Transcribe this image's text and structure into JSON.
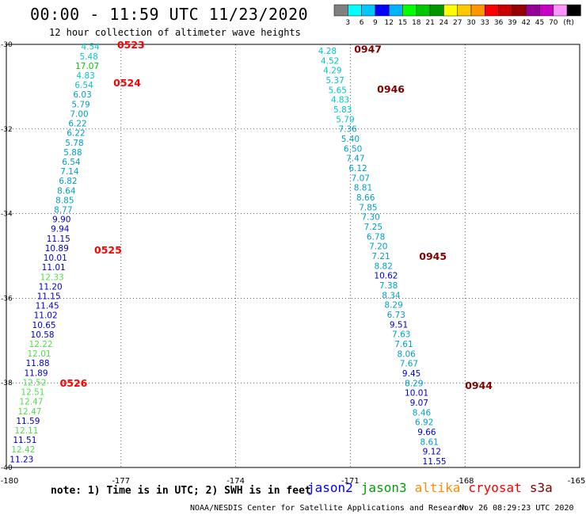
{
  "title": "00:00 - 11:59 UTC 11/23/2020",
  "subtitle": "12 hour collection of altimeter wave heights",
  "legend": {
    "boxes": [
      {
        "color": "#808080"
      },
      {
        "color": "#00ffff"
      },
      {
        "color": "#00c8ff"
      },
      {
        "color": "#0000ff"
      },
      {
        "color": "#00b4ff"
      },
      {
        "color": "#00ff00"
      },
      {
        "color": "#00c800"
      },
      {
        "color": "#009600"
      },
      {
        "color": "#ffff00"
      },
      {
        "color": "#ffc800"
      },
      {
        "color": "#ff9600"
      },
      {
        "color": "#ff0000"
      },
      {
        "color": "#c80000"
      },
      {
        "color": "#960000"
      },
      {
        "color": "#960096"
      },
      {
        "color": "#c800c8"
      },
      {
        "color": "#ff96ff"
      },
      {
        "color": "#000000"
      }
    ],
    "labels": [
      "3",
      "6",
      "9",
      "12",
      "15",
      "18",
      "21",
      "24",
      "27",
      "30",
      "33",
      "36",
      "39",
      "42",
      "45",
      "70",
      "(ft)"
    ]
  },
  "axes": {
    "lon_ticks": [
      "-180",
      "-177",
      "-174",
      "-171",
      "-168",
      "-165"
    ],
    "lat_ticks": [
      "-30",
      "-32",
      "-34",
      "-36",
      "-38",
      "-40"
    ]
  },
  "tracks": [
    {
      "lon_start": -177.8,
      "lat_start": -30.05,
      "lon_end": -179.6,
      "lat_end": -39.8,
      "values": [
        "4.54",
        "5.48",
        "17.07",
        "4.83",
        "6.54",
        "6.03",
        "5.79",
        "7.00",
        "6.22",
        "6.22",
        "5.78",
        "5.88",
        "6.54",
        "7.14",
        "6.82",
        "8.64",
        "8.85",
        "8.77",
        "9.90",
        "9.94",
        "11.15",
        "10.89",
        "10.01",
        "11.01",
        "12.33",
        "11.20",
        "11.15",
        "11.45",
        "11.02",
        "10.65",
        "10.58",
        "12.22",
        "12.01",
        "11.88",
        "11.89",
        "12.52",
        "12.51",
        "12.47",
        "12.47",
        "11.59",
        "12.11",
        "11.51",
        "12.42",
        "11.23"
      ],
      "colors": [
        "#00c8c8",
        "#00c8c8",
        "#00c800",
        "#00c8c8",
        "#00c8c8",
        "#00a0c8",
        "#00a0c8",
        "#00a0c8",
        "#00a0c8",
        "#00a0c8",
        "#00a0c8",
        "#00a0c8",
        "#00a0c8",
        "#00a0c8",
        "#00a0c8",
        "#00a0c8",
        "#00a0c8",
        "#00a0c8",
        "#0000c8",
        "#0000c8",
        "#0000c8",
        "#0000c8",
        "#0000c8",
        "#0000c8",
        "#50e050",
        "#0000c8",
        "#0000c8",
        "#0000c8",
        "#0000c8",
        "#0000c8",
        "#0000c8",
        "#50e050",
        "#50e050",
        "#0000c8",
        "#0000c8",
        "#50e050",
        "#50e050",
        "#50e050",
        "#50e050",
        "#0000c8",
        "#50e050",
        "#0000c8",
        "#50e050",
        "#0000c8"
      ],
      "times": [
        {
          "label": "0523",
          "lon": -177.1,
          "lat": -30.0,
          "color": "#ff0000"
        },
        {
          "label": "0524",
          "lon": -177.2,
          "lat": -30.9,
          "color": "#ff0000"
        },
        {
          "label": "0525",
          "lon": -177.7,
          "lat": -34.85,
          "color": "#ff0000"
        },
        {
          "label": "0526",
          "lon": -178.6,
          "lat": -38.0,
          "color": "#ff0000"
        }
      ]
    },
    {
      "lon_start": -171.6,
      "lat_start": -30.15,
      "lon_end": -168.8,
      "lat_end": -39.85,
      "values": [
        "4.28",
        "4.52",
        "4.29",
        "5.37",
        "5.65",
        "4.83",
        "5.83",
        "5.79",
        "7.36",
        "5.40",
        "6.50",
        "7.47",
        "6.12",
        "7.07",
        "8.81",
        "8.66",
        "7.85",
        "7.30",
        "7.25",
        "6.78",
        "7.20",
        "7.21",
        "8.82",
        "10.62",
        "7.38",
        "8.34",
        "8.29",
        "6.73",
        "9.51",
        "7.63",
        "7.61",
        "8.06",
        "7.67",
        "9.45",
        "8.29",
        "10.01",
        "9.07",
        "8.46",
        "6.92",
        "9.66",
        "8.61",
        "9.12",
        "11.55"
      ],
      "colors": [
        "#00c8c8",
        "#00c8c8",
        "#00c8c8",
        "#00c8c8",
        "#00c8c8",
        "#00c8c8",
        "#00c8c8",
        "#00c8c8",
        "#00a0c8",
        "#00a0c8",
        "#00a0c8",
        "#00a0c8",
        "#00a0c8",
        "#00a0c8",
        "#00a0c8",
        "#00a0c8",
        "#00a0c8",
        "#00a0c8",
        "#00a0c8",
        "#00a0c8",
        "#00a0c8",
        "#00a0c8",
        "#00a0c8",
        "#0000c8",
        "#00a0c8",
        "#00a0c8",
        "#00a0c8",
        "#00a0c8",
        "#0000c8",
        "#00a0c8",
        "#00a0c8",
        "#00a0c8",
        "#00a0c8",
        "#0000c8",
        "#00a0c8",
        "#0000c8",
        "#0000c8",
        "#00a0c8",
        "#00a0c8",
        "#0000c8",
        "#00a0c8",
        "#0000c8",
        "#0000c8"
      ],
      "times": [
        {
          "label": "0947",
          "lon": -170.9,
          "lat": -30.1,
          "color": "#800000"
        },
        {
          "label": "0946",
          "lon": -170.3,
          "lat": -31.05,
          "color": "#800000"
        },
        {
          "label": "0945",
          "lon": -169.2,
          "lat": -35.0,
          "color": "#800000"
        },
        {
          "label": "0944",
          "lon": -168.0,
          "lat": -38.05,
          "color": "#800000"
        }
      ]
    }
  ],
  "note": "note: 1) Time is in UTC; 2) SWH is in feet",
  "satellites": [
    {
      "name": "jason2",
      "color": "#0000ff"
    },
    {
      "name": "jason3",
      "color": "#00a000"
    },
    {
      "name": "altika",
      "color": "#ff8c00"
    },
    {
      "name": "cryosat",
      "color": "#ff0000"
    },
    {
      "name": "s3a",
      "color": "#800000"
    }
  ],
  "credit": "NOAA/NESDIS Center for Satellite Applications and Research",
  "timestamp": "Nov 26 08:29:23 UTC 2020"
}
